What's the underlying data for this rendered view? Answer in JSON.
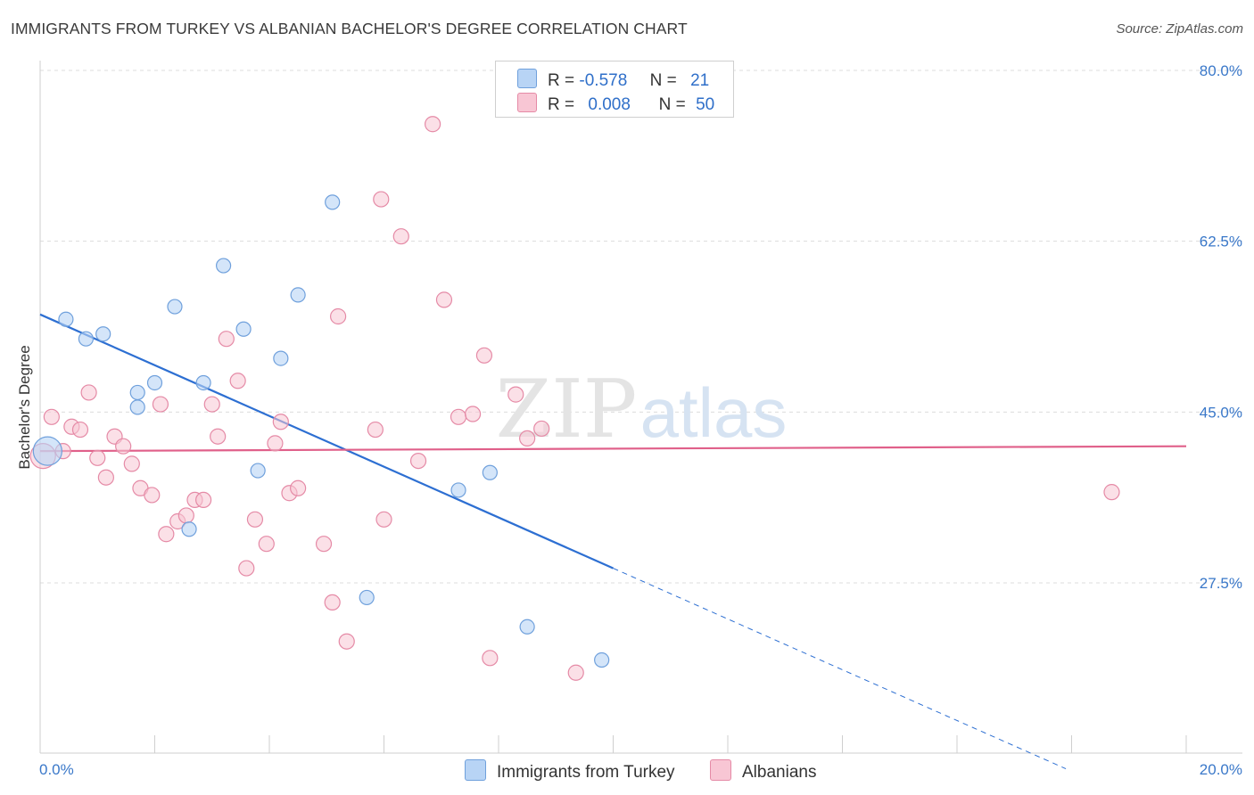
{
  "title": "IMMIGRANTS FROM TURKEY VS ALBANIAN BACHELOR'S DEGREE CORRELATION CHART",
  "source": "Source: ZipAtlas.com",
  "watermark": {
    "zip": "ZIP",
    "atlas": "atlas"
  },
  "legend": {
    "rows": [
      {
        "r_label": "R =",
        "r_value": "-0.578",
        "n_label": "N =",
        "n_value": "21"
      },
      {
        "r_label": "R =",
        "r_value": "0.008",
        "n_label": "N =",
        "n_value": "50"
      }
    ]
  },
  "bottom_legend": {
    "turkey": "Immigrants from Turkey",
    "albanians": "Albanians"
  },
  "colors": {
    "turkey_fill": "#b8d4f5",
    "turkey_stroke": "#6fa0dc",
    "turkey_line": "#2d6fd2",
    "albanian_fill": "#f8c6d4",
    "albanian_stroke": "#e58aa6",
    "albanian_line": "#e0608a",
    "grid": "#dcdcdc",
    "axis_text": "#3a78c9"
  },
  "chart_data": {
    "type": "scatter",
    "title": "IMMIGRANTS FROM TURKEY VS ALBANIAN BACHELOR'S DEGREE CORRELATION CHART",
    "xlabel": "",
    "ylabel": "Bachelor's Degree",
    "xlim": [
      0,
      20
    ],
    "ylim": [
      10,
      83
    ],
    "x_tick_labels": [
      "0.0%",
      "20.0%"
    ],
    "y_ticks": [
      27.5,
      45.0,
      62.5,
      80.0
    ],
    "y_tick_labels": [
      "27.5%",
      "45.0%",
      "62.5%",
      "80.0%"
    ],
    "series": [
      {
        "name": "Immigrants from Turkey",
        "r": -0.578,
        "n": 21,
        "points": [
          [
            0.13,
            41.0
          ],
          [
            0.45,
            54.5
          ],
          [
            0.8,
            52.5
          ],
          [
            1.1,
            53.0
          ],
          [
            1.7,
            45.5
          ],
          [
            1.7,
            47.0
          ],
          [
            2.0,
            48.0
          ],
          [
            2.35,
            55.8
          ],
          [
            2.6,
            33.0
          ],
          [
            2.85,
            48.0
          ],
          [
            3.2,
            60.0
          ],
          [
            3.55,
            53.5
          ],
          [
            3.8,
            39.0
          ],
          [
            4.2,
            50.5
          ],
          [
            4.5,
            57.0
          ],
          [
            5.1,
            66.5
          ],
          [
            5.7,
            26.0
          ],
          [
            7.3,
            37.0
          ],
          [
            7.85,
            38.8
          ],
          [
            8.5,
            23.0
          ],
          [
            9.8,
            19.6
          ]
        ],
        "trend": {
          "x1": 0,
          "y1": 55.0,
          "x2": 10.0,
          "y2": 29.0,
          "dash_to_x": 17.9
        }
      },
      {
        "name": "Albanians",
        "r": 0.008,
        "n": 50,
        "points": [
          [
            0.05,
            40.5
          ],
          [
            0.2,
            44.5
          ],
          [
            0.4,
            41.0
          ],
          [
            0.55,
            43.5
          ],
          [
            0.7,
            43.2
          ],
          [
            0.85,
            47.0
          ],
          [
            1.0,
            40.3
          ],
          [
            1.15,
            38.3
          ],
          [
            1.3,
            42.5
          ],
          [
            1.45,
            41.5
          ],
          [
            1.6,
            39.7
          ],
          [
            1.75,
            37.2
          ],
          [
            1.95,
            36.5
          ],
          [
            2.1,
            45.8
          ],
          [
            2.2,
            32.5
          ],
          [
            2.4,
            33.8
          ],
          [
            2.55,
            34.4
          ],
          [
            2.7,
            36.0
          ],
          [
            2.85,
            36.0
          ],
          [
            3.0,
            45.8
          ],
          [
            3.1,
            42.5
          ],
          [
            3.25,
            52.5
          ],
          [
            3.45,
            48.2
          ],
          [
            3.6,
            29.0
          ],
          [
            3.75,
            34.0
          ],
          [
            3.95,
            31.5
          ],
          [
            4.1,
            41.8
          ],
          [
            4.2,
            44.0
          ],
          [
            4.35,
            36.7
          ],
          [
            4.5,
            37.2
          ],
          [
            4.95,
            31.5
          ],
          [
            5.1,
            25.5
          ],
          [
            5.2,
            54.8
          ],
          [
            5.35,
            21.5
          ],
          [
            5.85,
            43.2
          ],
          [
            5.95,
            66.8
          ],
          [
            6.0,
            34.0
          ],
          [
            6.3,
            63.0
          ],
          [
            6.6,
            40.0
          ],
          [
            6.85,
            74.5
          ],
          [
            7.05,
            56.5
          ],
          [
            7.3,
            44.5
          ],
          [
            7.55,
            44.8
          ],
          [
            7.75,
            50.8
          ],
          [
            7.85,
            19.8
          ],
          [
            8.3,
            46.8
          ],
          [
            8.5,
            42.3
          ],
          [
            8.75,
            43.3
          ],
          [
            9.35,
            18.3
          ],
          [
            18.7,
            36.8
          ]
        ],
        "trend": {
          "x1": 0,
          "y1": 41.0,
          "x2": 20.0,
          "y2": 41.5
        }
      }
    ]
  }
}
